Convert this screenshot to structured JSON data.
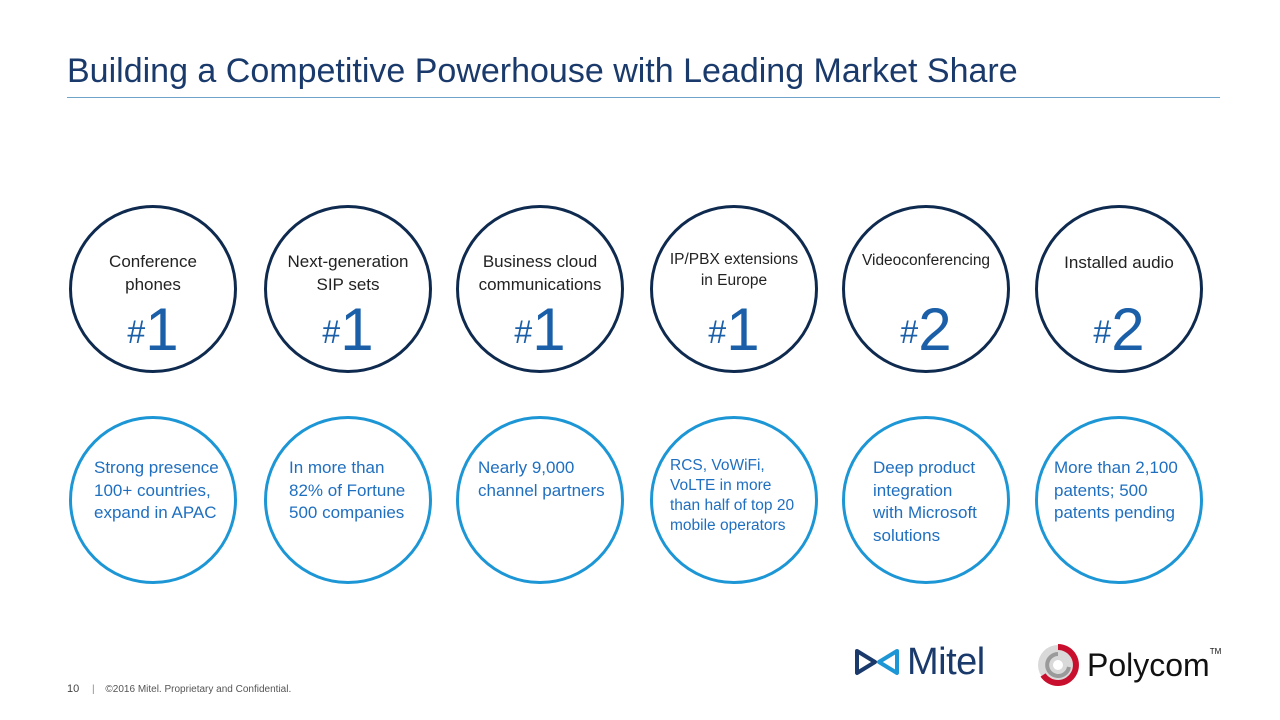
{
  "title": "Building a Competitive Powerhouse with Leading Market Share",
  "rankings": [
    {
      "label_line1": "Conference",
      "label_line2": "phones",
      "hash": "#",
      "rank": "1"
    },
    {
      "label_line1": "Next-generation",
      "label_line2": "SIP sets",
      "hash": "#",
      "rank": "1"
    },
    {
      "label_line1": "Business cloud",
      "label_line2": "communications",
      "hash": "#",
      "rank": "1"
    },
    {
      "label_line1": "IP/PBX extensions",
      "label_line2": "in Europe",
      "hash": "#",
      "rank": "1"
    },
    {
      "label_line1": "Videoconferencing",
      "label_line2": "",
      "hash": "#",
      "rank": "2"
    },
    {
      "label_line1": "Installed audio",
      "label_line2": "",
      "hash": "#",
      "rank": "2"
    }
  ],
  "facts": [
    {
      "lines": [
        "Strong presence",
        "100+ countries,",
        "expand in APAC"
      ]
    },
    {
      "lines": [
        "In more than",
        "82% of Fortune",
        "500 companies"
      ]
    },
    {
      "lines": [
        "Nearly 9,000",
        "channel partners"
      ]
    },
    {
      "lines": [
        "RCS, VoWiFi,",
        "VoLTE in more",
        "than half of top 20",
        "mobile operators"
      ]
    },
    {
      "lines": [
        "Deep product",
        "integration",
        "with Microsoft",
        "solutions"
      ]
    },
    {
      "lines": [
        "More than 2,100",
        "patents; 500",
        "patents pending"
      ]
    }
  ],
  "footer": {
    "page": "10",
    "separator": "|",
    "copyright": "©2016 Mitel. Proprietary and Confidential."
  },
  "logos": {
    "mitel": "Mitel",
    "polycom": "Polycom",
    "polycom_tm": "TM"
  },
  "colors": {
    "title": "#1a3a6b",
    "rank": "#1a5fa8",
    "top_circle": "#0f2a4f",
    "bottom_circle": "#1d96d5",
    "fact_text": "#1f6fc0"
  },
  "icons": {
    "mitel_logo": "mitel-bowtie-icon",
    "polycom_logo": "polycom-swirl-icon"
  }
}
